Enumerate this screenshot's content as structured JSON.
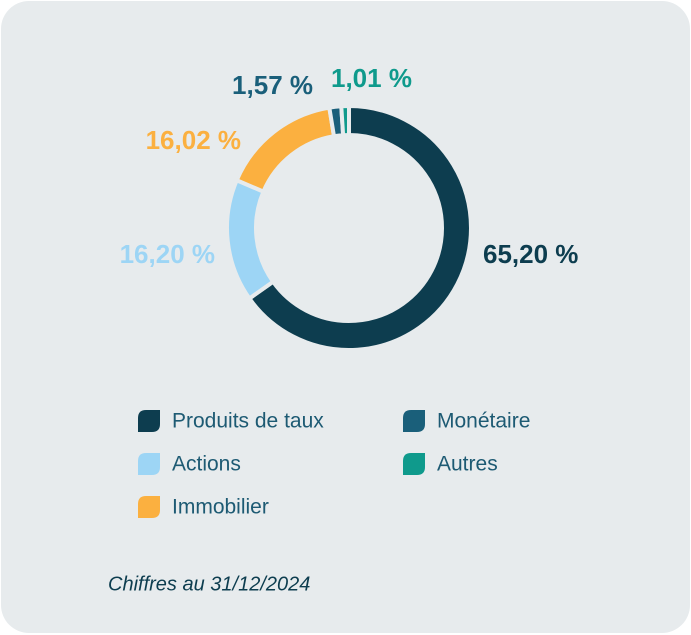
{
  "chart_data": {
    "type": "donut",
    "categories": [
      "Produits de taux",
      "Actions",
      "Immobilier",
      "Monétaire",
      "Autres"
    ],
    "values": [
      65.2,
      16.2,
      16.02,
      1.57,
      1.01
    ],
    "value_labels": [
      "65,20 %",
      "16,20 %",
      "16,02 %",
      "1,57 %",
      "1,01 %"
    ],
    "colors": [
      "#0d3d4f",
      "#9dd5f5",
      "#fbb040",
      "#1a5f7a",
      "#0f9a8c"
    ],
    "note": "Chiffres au 31/12/2024"
  }
}
